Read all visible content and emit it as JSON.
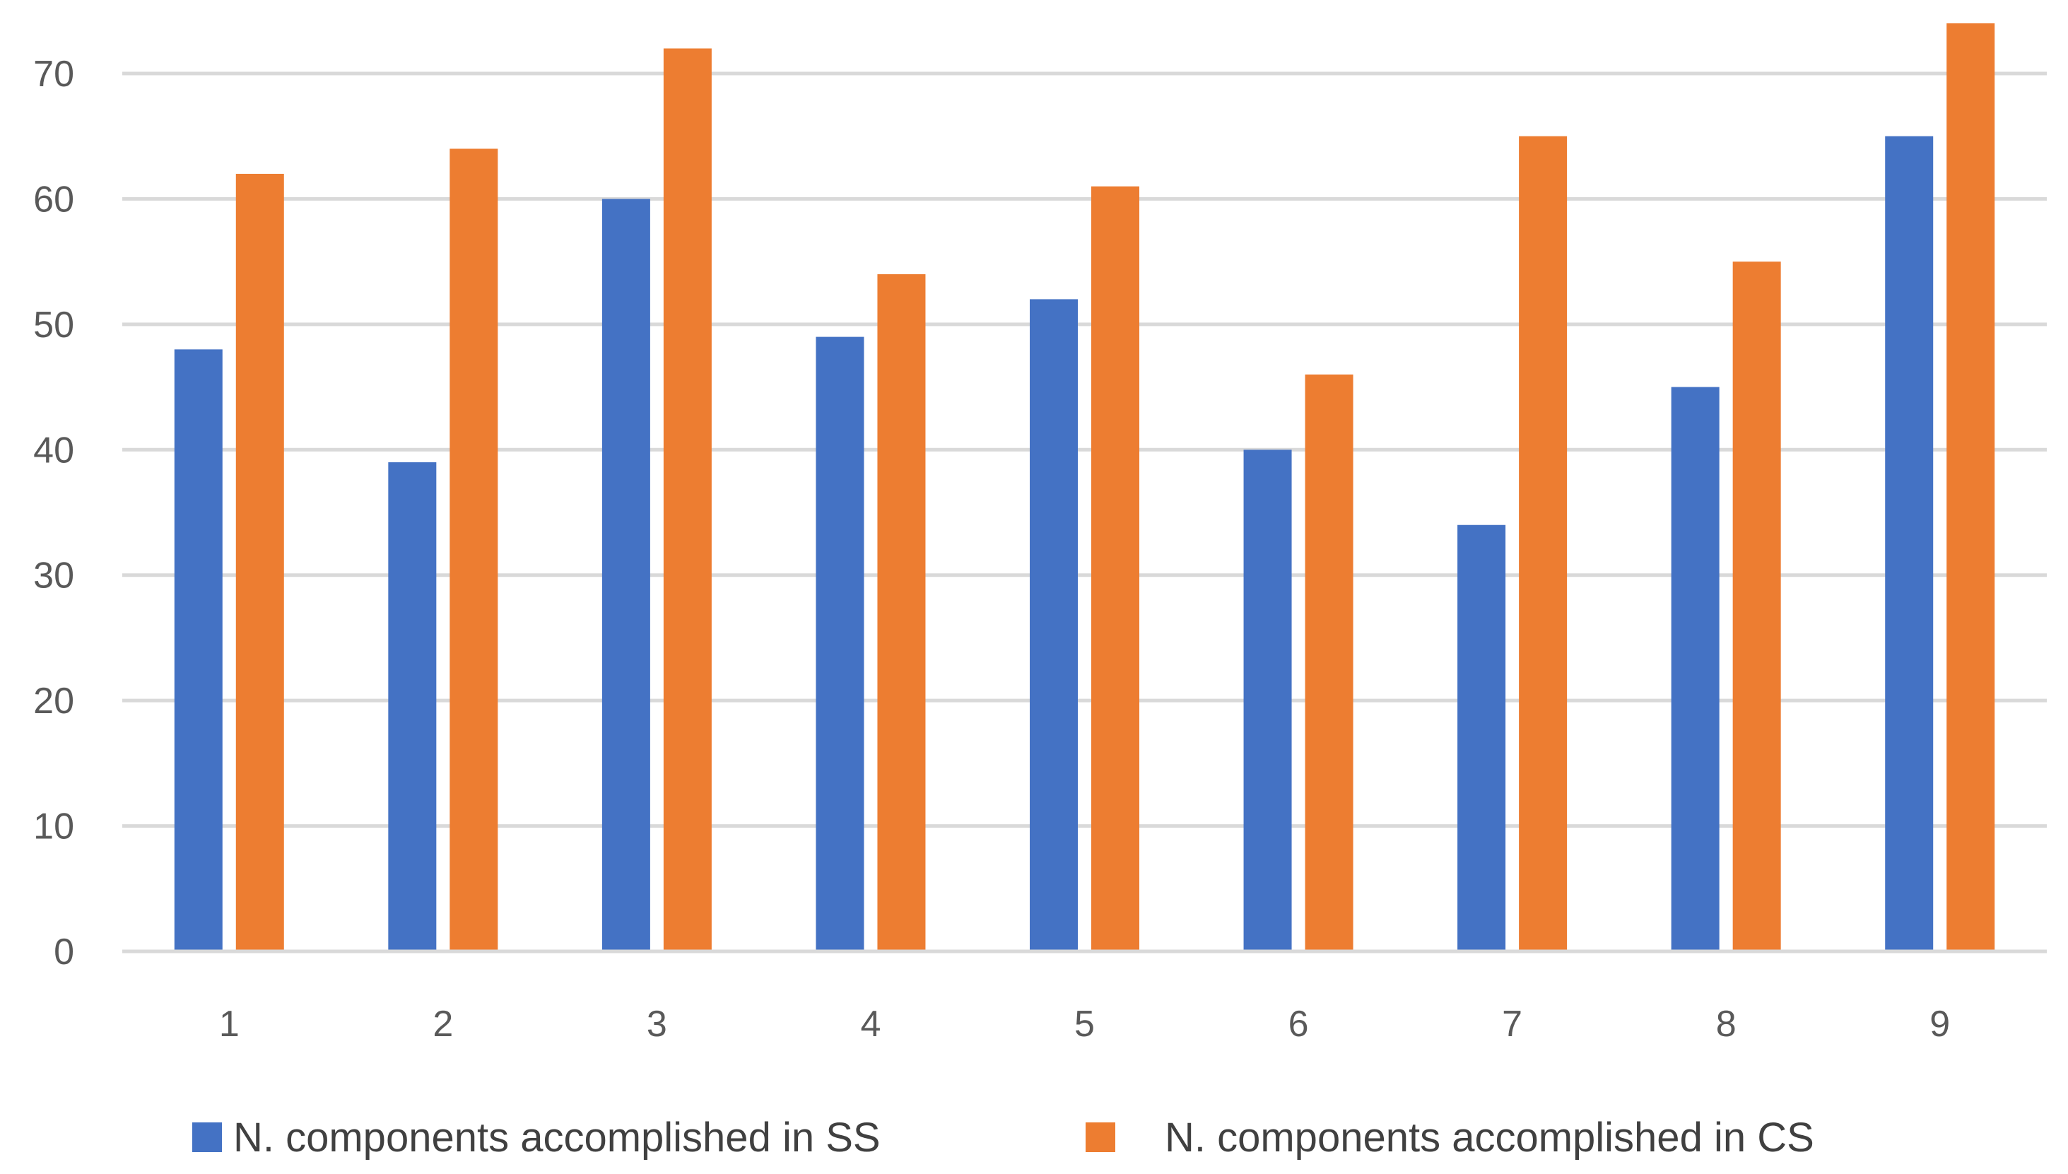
{
  "chart_data": {
    "type": "bar",
    "title": "",
    "xlabel": "",
    "ylabel": "",
    "categories": [
      "1",
      "2",
      "3",
      "4",
      "5",
      "6",
      "7",
      "8",
      "9"
    ],
    "series": [
      {
        "name": "N. components accomplished in SS",
        "color": "#4472C4",
        "values": [
          48,
          39,
          60,
          49,
          52,
          40,
          34,
          45,
          65
        ]
      },
      {
        "name": "N. components accomplished in CS",
        "color": "#ED7D31",
        "values": [
          62,
          64,
          72,
          54,
          61,
          46,
          65,
          55,
          74
        ]
      }
    ],
    "ylim": [
      0,
      70
    ],
    "yticks": [
      0,
      10,
      20,
      30,
      40,
      50,
      60,
      70
    ],
    "grid": true,
    "legend_position": "bottom"
  }
}
